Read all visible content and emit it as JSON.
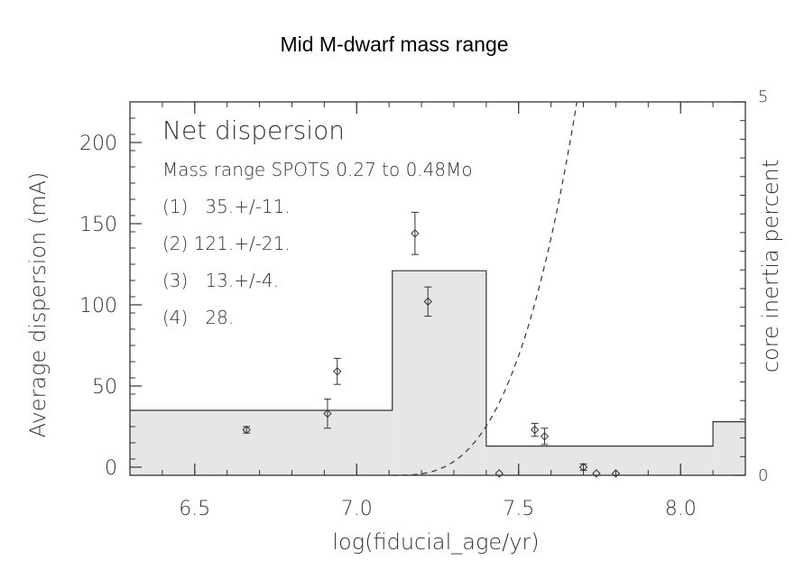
{
  "chart_data": {
    "type": "bar",
    "title": "Mid M-dwarf mass range",
    "xlabel": "log(fiducial_age/yr)",
    "ylabel": "Average dispersion (mA)",
    "y2label": "core inertia percent",
    "xlim": [
      6.3,
      8.2
    ],
    "ylim": [
      -5,
      225
    ],
    "y2lim": [
      0,
      5
    ],
    "xticks": [
      6.5,
      7.0,
      7.5,
      8.0
    ],
    "xtick_labels": [
      "6.5",
      "7.0",
      "7.5",
      "8.0"
    ],
    "yticks": [
      0,
      50,
      100,
      150,
      200
    ],
    "ytick_labels": [
      "0",
      "50",
      "100",
      "150",
      "200"
    ],
    "y2ticks": [
      0,
      5
    ],
    "y2tick_labels": [
      "0",
      "5"
    ],
    "histogram_bins": [
      {
        "x0": 6.3,
        "x1": 7.11,
        "value": 35
      },
      {
        "x0": 7.11,
        "x1": 7.4,
        "value": 121
      },
      {
        "x0": 7.4,
        "x1": 8.1,
        "value": 13
      },
      {
        "x0": 8.1,
        "x1": 8.2,
        "value": 28
      }
    ],
    "points": [
      {
        "x": 6.66,
        "y": 23,
        "err": 2
      },
      {
        "x": 6.91,
        "y": 33,
        "err": 9
      },
      {
        "x": 6.94,
        "y": 59,
        "err": 8
      },
      {
        "x": 7.18,
        "y": 144,
        "err": 13
      },
      {
        "x": 7.22,
        "y": 102,
        "err": 9
      },
      {
        "x": 7.44,
        "y": -5,
        "err": 0
      },
      {
        "x": 7.55,
        "y": 23,
        "err": 4
      },
      {
        "x": 7.58,
        "y": 19,
        "err": 5
      },
      {
        "x": 7.7,
        "y": 0,
        "err": 2
      },
      {
        "x": 7.74,
        "y": -5,
        "err": 0
      },
      {
        "x": 7.8,
        "y": -5,
        "err": 0
      }
    ],
    "curve": {
      "name": "core inertia percent",
      "style": "dashed",
      "x0": 7.11,
      "x1": 7.68,
      "y2_at_x1": 5
    },
    "annotations": [
      "Net dispersion",
      "Mass range SPOTS 0.27 to 0.48Mo",
      "(1)   35.+/-11.",
      "(2) 121.+/-21.",
      "(3)   13.+/-4.",
      "(4)   28."
    ]
  }
}
